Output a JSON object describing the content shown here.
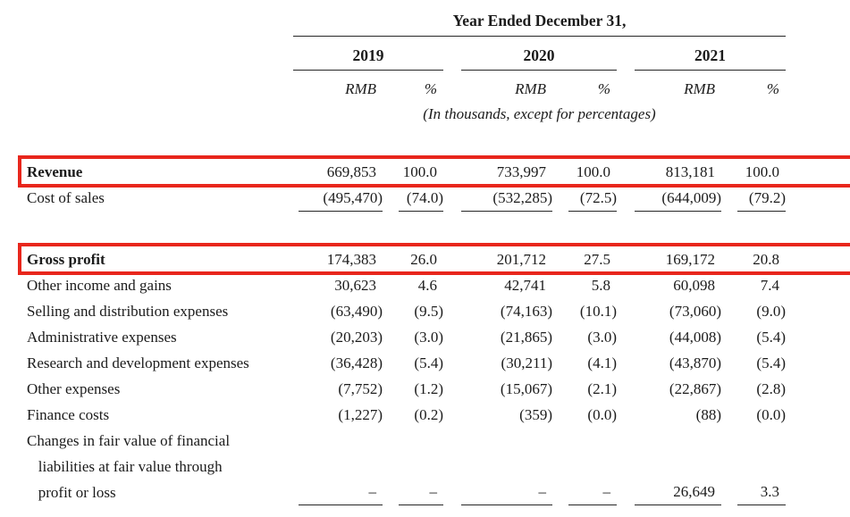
{
  "page": {
    "title": "Year Ended December 31,",
    "years": [
      "2019",
      "2020",
      "2021"
    ],
    "unit_columns": [
      "RMB",
      "%",
      "RMB",
      "%",
      "RMB",
      "%"
    ],
    "note": "(In thousands, except for percentages)",
    "highlight_color": "#e8261c",
    "rows": [
      {
        "id": "revenue",
        "label": "Revenue",
        "bold": true,
        "top_rule": true,
        "highlight": true,
        "values": [
          "669,853",
          "100.0",
          "733,997",
          "100.0",
          "813,181",
          "100.0"
        ]
      },
      {
        "id": "cost-of-sales",
        "label": "Cost of sales",
        "underline_values": true,
        "values": [
          "(495,470)",
          "(74.0)",
          "(532,285)",
          "(72.5)",
          "(644,009)",
          "(79.2)"
        ]
      },
      {
        "id": "gross-profit",
        "label": "Gross profit",
        "bold": true,
        "top_rule": true,
        "highlight": true,
        "spacer_before": true,
        "values": [
          "174,383",
          "26.0",
          "201,712",
          "27.5",
          "169,172",
          "20.8"
        ]
      },
      {
        "id": "other-income-and-gains",
        "label": "Other income and gains",
        "values": [
          "30,623",
          "4.6",
          "42,741",
          "5.8",
          "60,098",
          "7.4"
        ]
      },
      {
        "id": "selling-and-distribution-expenses",
        "label": "Selling and distribution expenses",
        "values": [
          "(63,490)",
          "(9.5)",
          "(74,163)",
          "(10.1)",
          "(73,060)",
          "(9.0)"
        ]
      },
      {
        "id": "administrative-expenses",
        "label": "Administrative expenses",
        "values": [
          "(20,203)",
          "(3.0)",
          "(21,865)",
          "(3.0)",
          "(44,008)",
          "(5.4)"
        ]
      },
      {
        "id": "research-and-development-expenses",
        "label": "Research and development expenses",
        "values": [
          "(36,428)",
          "(5.4)",
          "(30,211)",
          "(4.1)",
          "(43,870)",
          "(5.4)"
        ]
      },
      {
        "id": "other-expenses",
        "label": "Other expenses",
        "values": [
          "(7,752)",
          "(1.2)",
          "(15,067)",
          "(2.1)",
          "(22,867)",
          "(2.8)"
        ]
      },
      {
        "id": "finance-costs",
        "label": "Finance costs",
        "values": [
          "(1,227)",
          "(0.2)",
          "(359)",
          "(0.0)",
          "(88)",
          "(0.0)"
        ]
      },
      {
        "id": "changes-in-fair-value-of-financial-liabilities",
        "multiline": true,
        "underline_values": true,
        "label": "Changes in fair value of financial\n   liabilities at fair value through\n   profit or loss",
        "values": [
          "–",
          "–",
          "–",
          "–",
          "26,649",
          "3.3"
        ]
      }
    ]
  }
}
